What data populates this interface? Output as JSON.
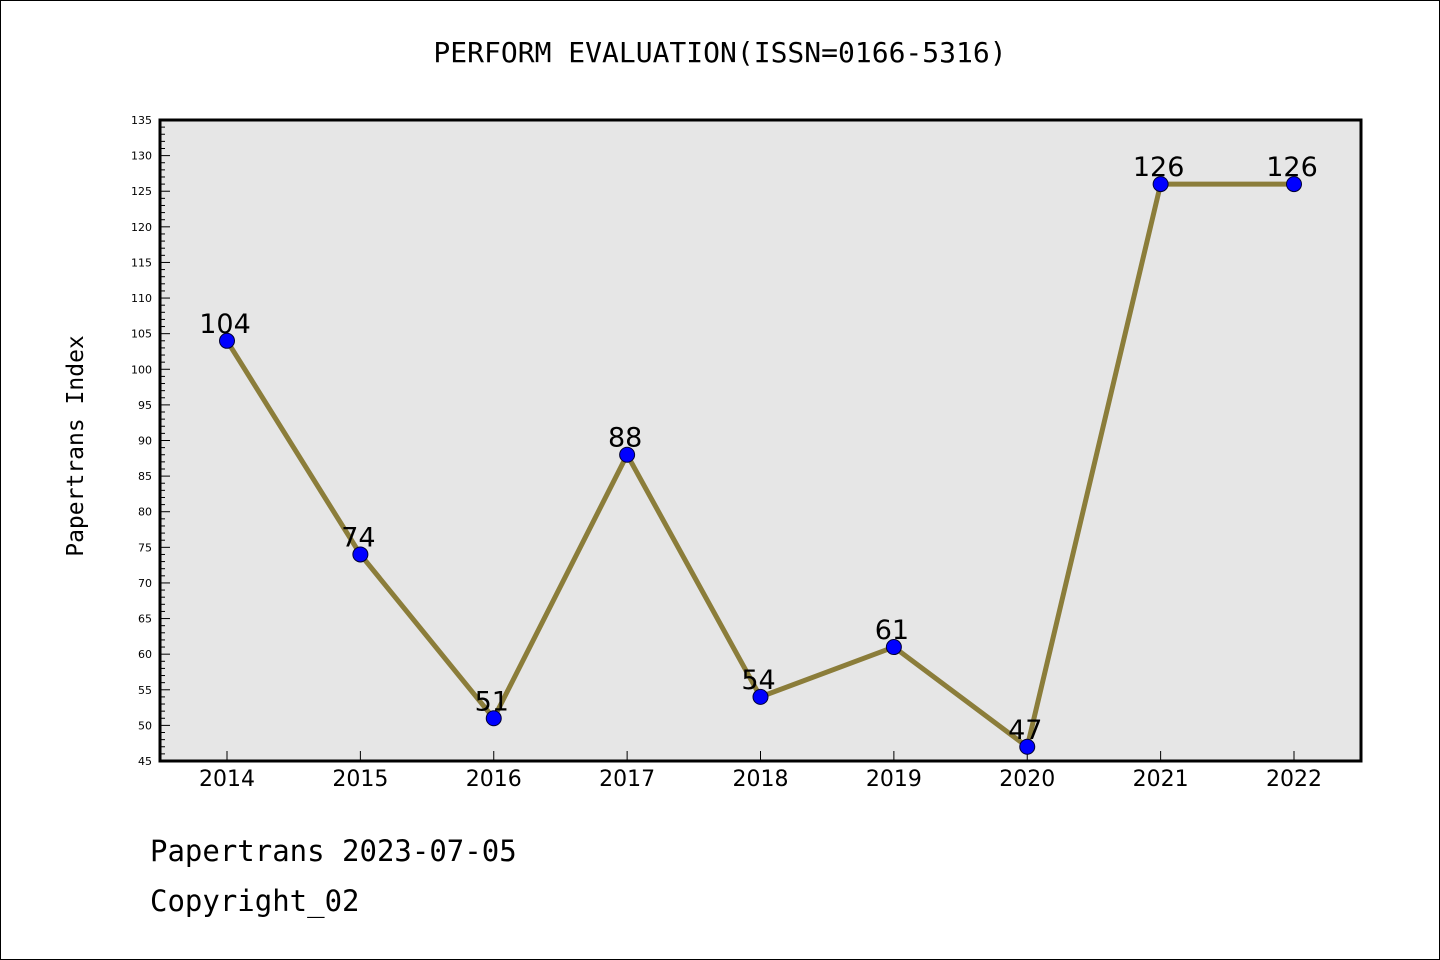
{
  "chart_data": {
    "type": "line",
    "title": "PERFORM EVALUATION(ISSN=0166-5316)",
    "xlabel": "",
    "ylabel": "Papertrans Index",
    "categories": [
      "2014",
      "2015",
      "2016",
      "2017",
      "2018",
      "2019",
      "2020",
      "2021",
      "2022"
    ],
    "series": [
      {
        "values": [
          104,
          74,
          51,
          88,
          54,
          61,
          47,
          126,
          126
        ]
      }
    ],
    "data_labels": [
      "104",
      "74",
      "51",
      "88",
      "54",
      "61",
      "47",
      "126",
      "126"
    ],
    "ylim": [
      45,
      135
    ],
    "yticks": [
      45,
      50,
      55,
      60,
      65,
      70,
      75,
      80,
      85,
      90,
      95,
      100,
      105,
      110,
      115,
      120,
      125,
      130,
      135
    ],
    "grid": false,
    "colors": {
      "line": "#8b7d3a",
      "marker": "#0000ff",
      "plot_bg": "#e6e6e6"
    }
  },
  "footer": {
    "date_text": "Papertrans 2023-07-05",
    "copyright_text": "Copyright_02"
  }
}
